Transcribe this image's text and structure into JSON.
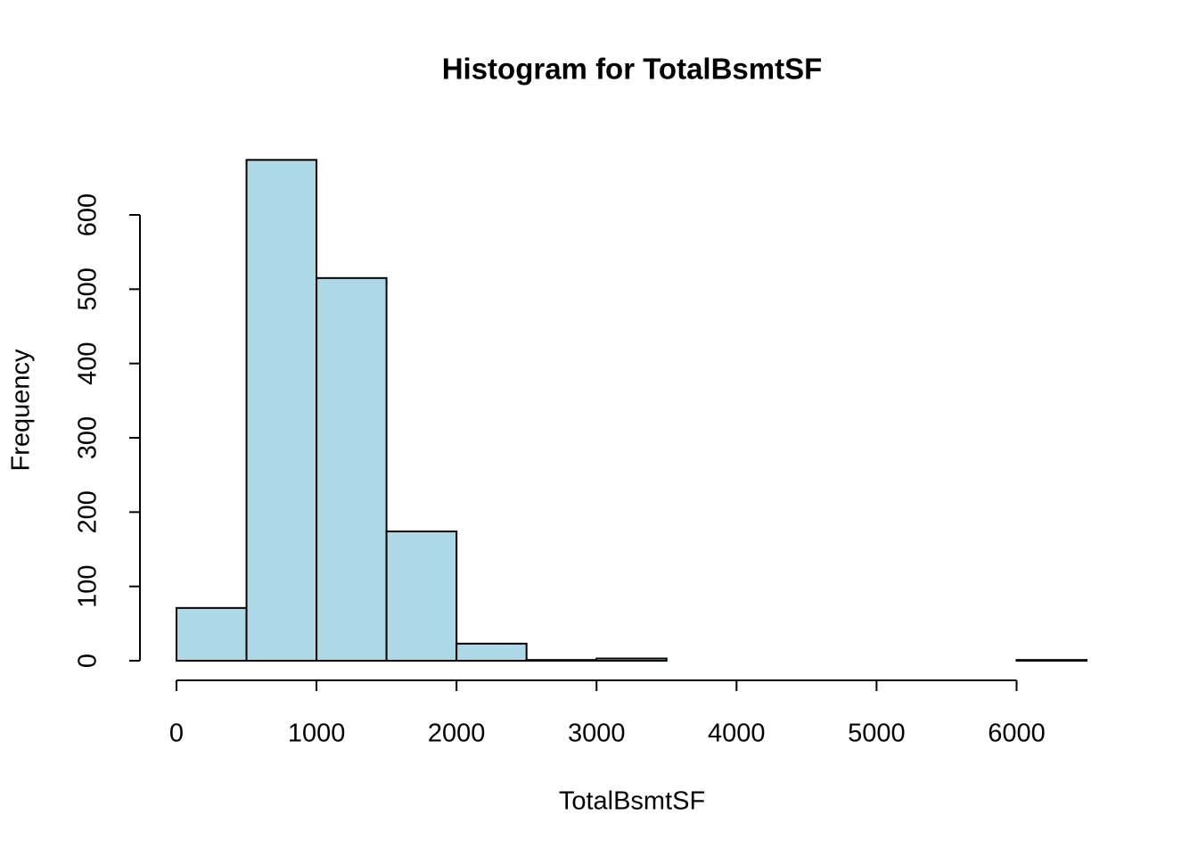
{
  "chart_data": {
    "type": "histogram",
    "title": "Histogram for TotalBsmtSF",
    "x_label": "TotalBsmtSF",
    "y_label": "Frequency",
    "bins": [
      0,
      500,
      1000,
      1500,
      2000,
      2500,
      3000,
      3500,
      4000,
      4500,
      5000,
      5500,
      6000,
      6500
    ],
    "values": [
      71,
      674,
      515,
      174,
      23,
      1,
      3,
      0,
      0,
      0,
      0,
      0,
      1
    ],
    "color": "#add8e6",
    "xlim": [
      0,
      6500
    ],
    "xticks": [
      0,
      1000,
      2000,
      3000,
      4000,
      5000,
      6000
    ],
    "ylim": [
      0,
      700
    ],
    "yticks": [
      0,
      100,
      200,
      300,
      400,
      500,
      600
    ]
  }
}
